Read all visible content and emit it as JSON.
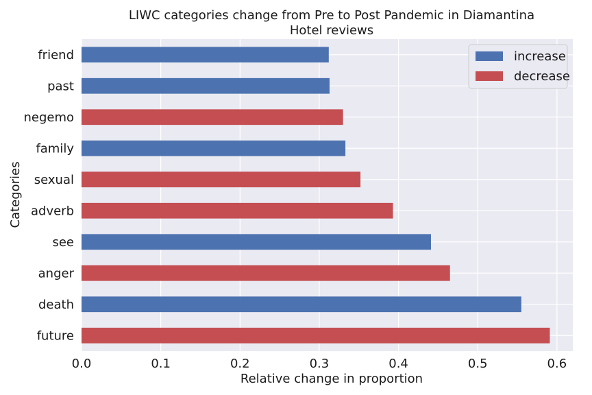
{
  "chart_data": {
    "type": "bar",
    "orientation": "horizontal",
    "title": [
      "LIWC categories change from Pre to Post Pandemic in Diamantina",
      "Hotel reviews"
    ],
    "xlabel": "Relative change in proportion",
    "ylabel": "Categories",
    "xlim": [
      0,
      0.62
    ],
    "xticks": [
      0.0,
      0.1,
      0.2,
      0.3,
      0.4,
      0.5,
      0.6
    ],
    "xtick_labels": [
      "0.0",
      "0.1",
      "0.2",
      "0.3",
      "0.4",
      "0.5",
      "0.6"
    ],
    "grid": true,
    "legend_position": "top-right",
    "legend": [
      {
        "label": "increase",
        "color": "#4c72b0"
      },
      {
        "label": "decrease",
        "color": "#c44e52"
      }
    ],
    "categories": [
      "future",
      "death",
      "anger",
      "see",
      "adverb",
      "sexual",
      "family",
      "negemo",
      "past",
      "friend"
    ],
    "values": [
      0.591,
      0.555,
      0.465,
      0.441,
      0.393,
      0.352,
      0.333,
      0.33,
      0.313,
      0.312
    ],
    "direction": [
      "decrease",
      "increase",
      "decrease",
      "increase",
      "decrease",
      "decrease",
      "increase",
      "decrease",
      "increase",
      "increase"
    ]
  }
}
